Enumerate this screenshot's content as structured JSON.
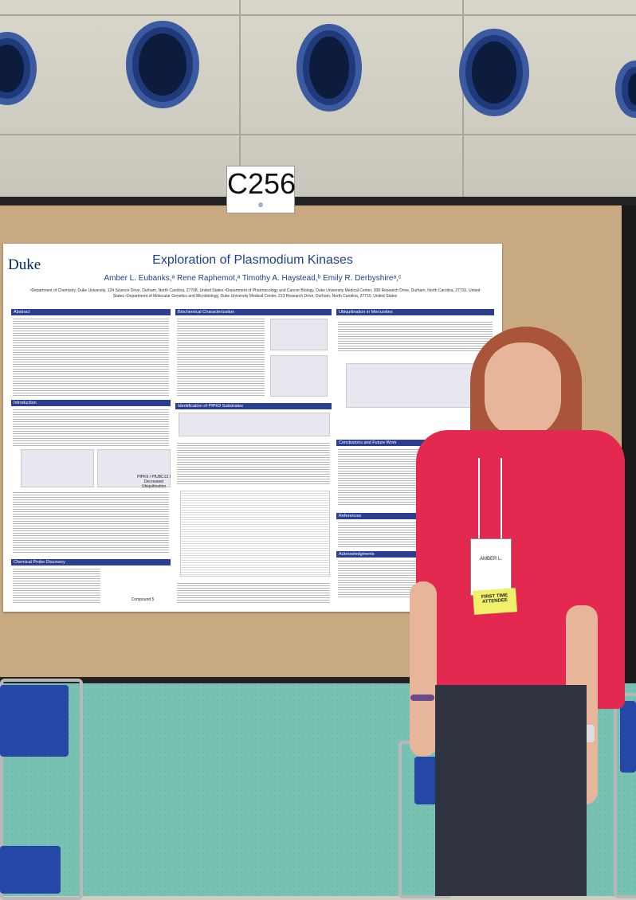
{
  "booth": {
    "number": "C256"
  },
  "poster": {
    "logo": "Duke",
    "title": "Exploration of Plasmodium Kinases",
    "authors": "Amber L. Eubanks,ᵃ Rene Raphemot,ᵃ Timothy A. Haystead,ᵇ Emily R. Derbyshireᵃ,ᶜ",
    "affiliations": "ᵃDepartment of Chemistry, Duke University, 124 Science Drive, Durham, North Carolina, 27708, United States ᵇDepartment of Pharmacology and Cancer Biology, Duke University Medical Center, 308 Research Drive, Durham, North Carolina, 27710, United States ᶜDepartment of Molecular Genetics and Microbiology, Duke University Medical Center, 213 Research Drive, Durham, North Carolina, 27710, United States",
    "sections": {
      "abstract": "Abstract",
      "introduction": "Introduction",
      "chemical_probe": "Chemical Probe Discovery",
      "biochemical": "Biochemical Characterization",
      "identification": "Identification of PfPK9 Substrates",
      "ubiquitination": "Ubiquitination in Merozoites",
      "conclusions": "Conclusions and Future Work",
      "references": "References",
      "acknowledgments": "Acknowledgments"
    },
    "figure_labels": {
      "compound": "Compound 5",
      "ubiquitination_fig": "PfPK9 / PfUBC13 / Decreased Ubiquitination"
    }
  },
  "badge": {
    "name": "AMBER L.",
    "tag": "FIRST TIME ATTENDEE"
  },
  "colors": {
    "poster_header_blue": "#2b3f8e",
    "shirt": "#e3294f",
    "floor": "#79c1b3",
    "chairs": "#2548a6"
  }
}
